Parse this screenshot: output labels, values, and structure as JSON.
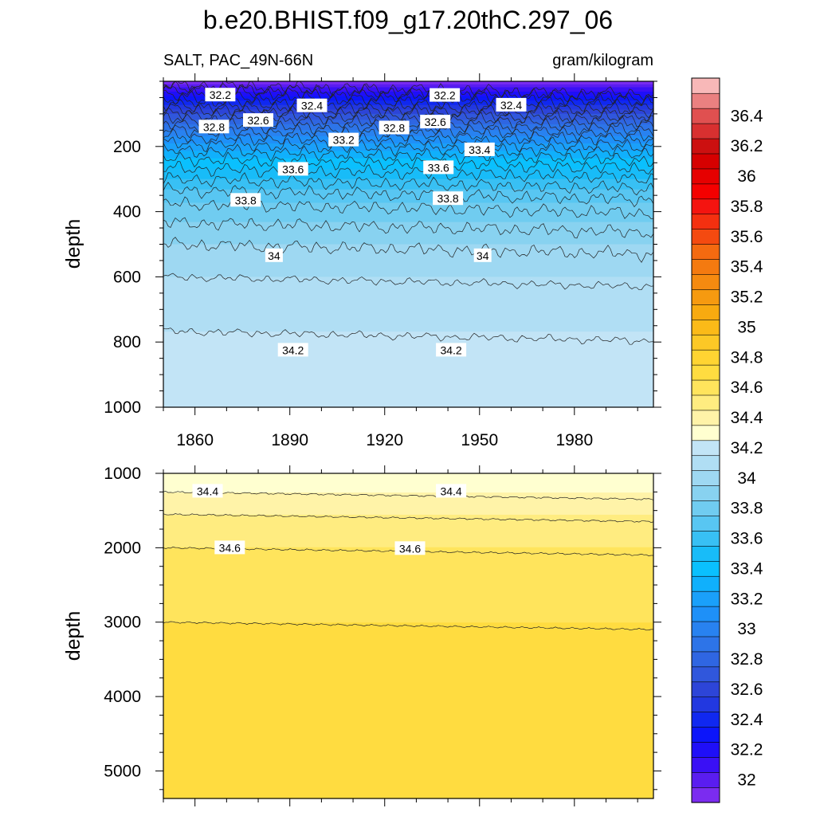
{
  "title": "b.e20.BHIST.f09_g17.20thC.297_06",
  "subtitle_left": "SALT, PAC_49N-66N",
  "subtitle_right": "gram/kilogram",
  "colors": {
    "levels": [
      31.9,
      32.0,
      32.1,
      32.2,
      32.3,
      32.4,
      32.5,
      32.6,
      32.7,
      32.8,
      32.9,
      33.0,
      33.1,
      33.2,
      33.3,
      33.4,
      33.5,
      33.6,
      33.7,
      33.8,
      33.9,
      34.0,
      34.1,
      34.2,
      34.3,
      34.4,
      34.5,
      34.6,
      34.7,
      34.8,
      34.9,
      35.0,
      35.1,
      35.2,
      35.3,
      35.4,
      35.5,
      35.6,
      35.7,
      35.8,
      35.9,
      36.0,
      36.1,
      36.2,
      36.3,
      36.4,
      36.5,
      36.6
    ],
    "fills": [
      "#7b2cf0",
      "#5a1df0",
      "#3a10f5",
      "#1f0ff8",
      "#0c15fa",
      "#1028f0",
      "#2238e0",
      "#2d45d8",
      "#3057dc",
      "#2f66e2",
      "#2d74e8",
      "#2882f0",
      "#1e90f8",
      "#1aa0fa",
      "#10b0fc",
      "#0ac0fe",
      "#18bcf8",
      "#38c0f4",
      "#58c6f2",
      "#70ccf0",
      "#88d2f0",
      "#9ed8f2",
      "#b0def4",
      "#c2e4f6",
      "#ffffd0",
      "#fff3a8",
      "#ffec80",
      "#ffe45c",
      "#ffdc40",
      "#ffd432",
      "#fcc826",
      "#fbba18",
      "#f8aa10",
      "#f69a10",
      "#f58a10",
      "#f47a10",
      "#f46a10",
      "#f44a10",
      "#f43010",
      "#f41410",
      "#f40000",
      "#e60000",
      "#d60000",
      "#cc1010",
      "#d83030",
      "#e05050",
      "#ea8080",
      "#f8b8b8"
    ]
  },
  "colorbar": {
    "tick_labels": [
      "32",
      "32.2",
      "32.4",
      "32.6",
      "32.8",
      "33",
      "33.2",
      "33.4",
      "33.6",
      "33.8",
      "34",
      "34.2",
      "34.4",
      "34.6",
      "34.8",
      "35",
      "35.2",
      "35.4",
      "35.6",
      "35.8",
      "36",
      "36.2",
      "36.4"
    ]
  },
  "chart_data": [
    {
      "type": "heatmap",
      "panel": "upper",
      "ylabel": "depth",
      "xlabel": "",
      "xlim": [
        1850,
        2005
      ],
      "ylim": [
        0,
        1000
      ],
      "y_inverted": true,
      "x_tick_labels": [
        "1860",
        "1890",
        "1920",
        "1950",
        "1980"
      ],
      "x_ticks": [
        1860,
        1890,
        1920,
        1950,
        1980
      ],
      "y_tick_labels": [
        "200",
        "400",
        "600",
        "800",
        "1000"
      ],
      "y_ticks": [
        200,
        400,
        600,
        800,
        1000
      ],
      "salinity_profile": {
        "depth": [
          0,
          30,
          60,
          100,
          150,
          200,
          250,
          300,
          350,
          400,
          500,
          600,
          700,
          800,
          850,
          1000
        ],
        "salt": [
          31.9,
          32.2,
          32.4,
          32.7,
          33.0,
          33.25,
          33.45,
          33.6,
          33.75,
          33.85,
          34.0,
          34.1,
          34.18,
          34.21,
          34.23,
          34.28
        ]
      },
      "contour_labels": [
        {
          "text": "32.2",
          "x": 1868,
          "depth": 42
        },
        {
          "text": "32.4",
          "x": 1897,
          "depth": 75
        },
        {
          "text": "32.8",
          "x": 1866,
          "depth": 140
        },
        {
          "text": "32.6",
          "x": 1880,
          "depth": 120
        },
        {
          "text": "33.2",
          "x": 1907,
          "depth": 180
        },
        {
          "text": "32.8",
          "x": 1923,
          "depth": 143
        },
        {
          "text": "32.2",
          "x": 1939,
          "depth": 43
        },
        {
          "text": "32.6",
          "x": 1936,
          "depth": 125
        },
        {
          "text": "32.4",
          "x": 1960,
          "depth": 73
        },
        {
          "text": "33.4",
          "x": 1950,
          "depth": 210
        },
        {
          "text": "33.6",
          "x": 1891,
          "depth": 270
        },
        {
          "text": "33.6",
          "x": 1937,
          "depth": 265
        },
        {
          "text": "33.8",
          "x": 1876,
          "depth": 365
        },
        {
          "text": "33.8",
          "x": 1940,
          "depth": 360
        },
        {
          "text": "34",
          "x": 1885,
          "depth": 535
        },
        {
          "text": "34",
          "x": 1951,
          "depth": 535
        },
        {
          "text": "34.2",
          "x": 1891,
          "depth": 825
        },
        {
          "text": "34.2",
          "x": 1941,
          "depth": 825
        }
      ]
    },
    {
      "type": "heatmap",
      "panel": "lower",
      "ylabel": "depth",
      "xlabel": "",
      "xlim": [
        1850,
        2005
      ],
      "ylim": [
        1000,
        5370
      ],
      "y_inverted": true,
      "x_ticks": [
        1860,
        1890,
        1920,
        1950,
        1980
      ],
      "y_tick_labels": [
        "1000",
        "2000",
        "3000",
        "4000",
        "5000"
      ],
      "y_ticks": [
        1000,
        2000,
        3000,
        4000,
        5000
      ],
      "salinity_profile": {
        "depth": [
          1000,
          1250,
          1550,
          2000,
          3000,
          3100,
          5370
        ],
        "salt": [
          34.3,
          34.4,
          34.5,
          34.6,
          34.7,
          34.72,
          34.76
        ]
      },
      "contour_labels": [
        {
          "text": "34.4",
          "x": 1864,
          "depth": 1240
        },
        {
          "text": "34.4",
          "x": 1941,
          "depth": 1240
        },
        {
          "text": "34.6",
          "x": 1871,
          "depth": 2000
        },
        {
          "text": "34.6",
          "x": 1928,
          "depth": 2010
        }
      ]
    }
  ]
}
